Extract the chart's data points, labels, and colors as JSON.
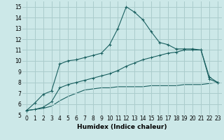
{
  "xlabel": "Humidex (Indice chaleur)",
  "xlim": [
    -0.5,
    23.5
  ],
  "ylim": [
    5,
    15.5
  ],
  "xticks": [
    0,
    1,
    2,
    3,
    4,
    5,
    6,
    7,
    8,
    9,
    10,
    11,
    12,
    13,
    14,
    15,
    16,
    17,
    18,
    19,
    20,
    21,
    22,
    23
  ],
  "yticks": [
    5,
    6,
    7,
    8,
    9,
    10,
    11,
    12,
    13,
    14,
    15
  ],
  "bg_color": "#cce8e8",
  "grid_color": "#aacccc",
  "line_color": "#1a6060",
  "line1_x": [
    0,
    1,
    2,
    3,
    4,
    5,
    6,
    7,
    8,
    9,
    10,
    11,
    12,
    13,
    14,
    15,
    16,
    17,
    18,
    19,
    20,
    21,
    22,
    23
  ],
  "line1_y": [
    5.4,
    6.1,
    6.9,
    7.2,
    9.7,
    10.0,
    10.1,
    10.3,
    10.5,
    10.7,
    11.5,
    13.0,
    15.0,
    14.5,
    13.8,
    12.7,
    11.7,
    11.5,
    11.1,
    11.1,
    11.1,
    11.0,
    8.5,
    8.0
  ],
  "line2_x": [
    0,
    1,
    2,
    3,
    4,
    5,
    6,
    7,
    8,
    9,
    10,
    11,
    12,
    13,
    14,
    15,
    16,
    17,
    18,
    19,
    20,
    21,
    22,
    23
  ],
  "line2_y": [
    5.4,
    5.5,
    5.7,
    6.2,
    7.5,
    7.8,
    8.0,
    8.2,
    8.4,
    8.6,
    8.8,
    9.1,
    9.5,
    9.8,
    10.1,
    10.3,
    10.5,
    10.7,
    10.8,
    11.0,
    11.0,
    11.0,
    8.3,
    8.0
  ],
  "line3_x": [
    0,
    1,
    2,
    3,
    4,
    5,
    6,
    7,
    8,
    9,
    10,
    11,
    12,
    13,
    14,
    15,
    16,
    17,
    18,
    19,
    20,
    21,
    22,
    23
  ],
  "line3_y": [
    5.4,
    5.5,
    5.6,
    5.8,
    6.3,
    6.7,
    7.0,
    7.3,
    7.4,
    7.5,
    7.5,
    7.6,
    7.6,
    7.6,
    7.6,
    7.7,
    7.7,
    7.7,
    7.7,
    7.8,
    7.8,
    7.8,
    7.9,
    8.0
  ]
}
